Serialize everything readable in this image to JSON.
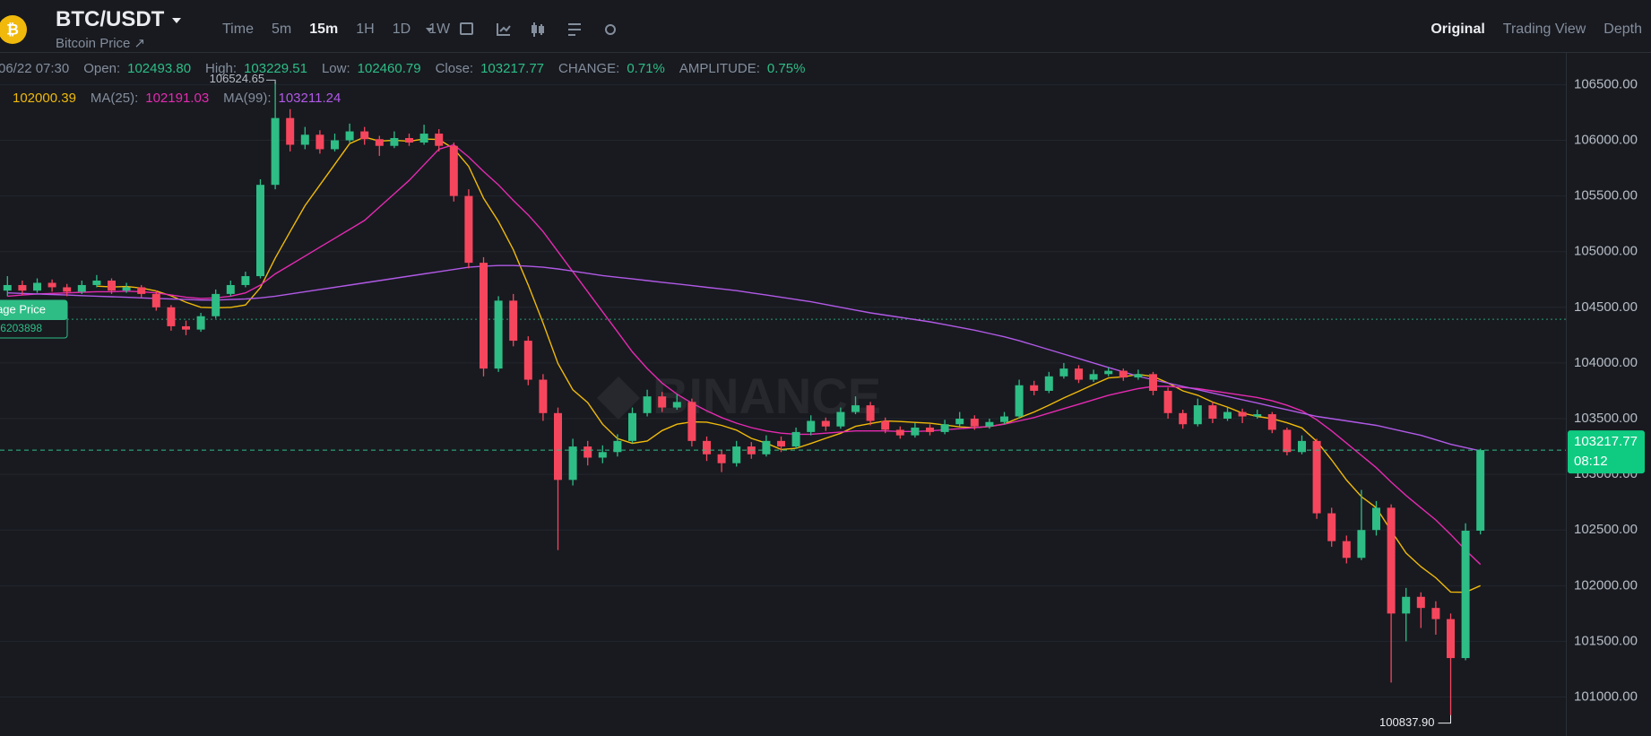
{
  "header": {
    "symbol": "BTC/USDT",
    "subtitle": "Bitcoin Price ↗",
    "intervals": [
      "Time",
      "5m",
      "15m",
      "1H",
      "1D",
      "1W"
    ],
    "active_interval": "15m",
    "views": [
      "Original",
      "Trading View",
      "Depth"
    ],
    "active_view": "Original"
  },
  "info": [
    {
      "value": "06/22 07:30"
    },
    {
      "label": "Open:",
      "value": "102493.80"
    },
    {
      "label": "High:",
      "value": "103229.51"
    },
    {
      "label": "Low:",
      "value": "102460.79"
    },
    {
      "label": "Close:",
      "value": "103217.77"
    },
    {
      "label": "CHANGE:",
      "value": "0.71%"
    },
    {
      "label": "AMPLITUDE:",
      "value": "0.75%"
    }
  ],
  "ma_info": [
    {
      "value": "102000.39"
    },
    {
      "label": "MA(25):",
      "value": "102191.03"
    },
    {
      "label": "MA(99):",
      "value": "103211.24"
    }
  ],
  "chart_data": {
    "type": "candlestick",
    "watermark": "BINANCE",
    "ylim": [
      100650,
      106785
    ],
    "yticks": [
      {
        "value": 101000,
        "label": "101000.00"
      },
      {
        "value": 101500,
        "label": "101500.00"
      },
      {
        "value": 102000,
        "label": "102000.00"
      },
      {
        "value": 102500,
        "label": "102500.00"
      },
      {
        "value": 103000,
        "label": "103000.00"
      },
      {
        "value": 103500,
        "label": "103500.00"
      },
      {
        "value": 104000,
        "label": "104000.00"
      },
      {
        "value": 104500,
        "label": "104500.00"
      },
      {
        "value": 105000,
        "label": "105000.00"
      },
      {
        "value": 105500,
        "label": "105500.00"
      },
      {
        "value": 106000,
        "label": "106000.00"
      },
      {
        "value": 106500,
        "label": "106500.00"
      }
    ],
    "grid": true,
    "up_color": "#2ebd85",
    "down_color": "#f6465d",
    "ohlc": [
      [
        104650,
        104780,
        104600,
        104700
      ],
      [
        104700,
        104740,
        104610,
        104650
      ],
      [
        104650,
        104760,
        104630,
        104720
      ],
      [
        104720,
        104750,
        104640,
        104680
      ],
      [
        104680,
        104710,
        104600,
        104640
      ],
      [
        104640,
        104740,
        104620,
        104700
      ],
      [
        104700,
        104790,
        104680,
        104740
      ],
      [
        104740,
        104760,
        104620,
        104650
      ],
      [
        104650,
        104720,
        104630,
        104680
      ],
      [
        104680,
        104700,
        104590,
        104620
      ],
      [
        104620,
        104650,
        104470,
        104500
      ],
      [
        104500,
        104520,
        104290,
        104330
      ],
      [
        104330,
        104380,
        104250,
        104300
      ],
      [
        104300,
        104450,
        104280,
        104420
      ],
      [
        104420,
        104660,
        104400,
        104620
      ],
      [
        104620,
        104740,
        104600,
        104700
      ],
      [
        104700,
        104820,
        104680,
        104780
      ],
      [
        104780,
        105650,
        104760,
        105600
      ],
      [
        105600,
        106524.65,
        105560,
        106200
      ],
      [
        106200,
        106280,
        105900,
        105960
      ],
      [
        105960,
        106120,
        105920,
        106050
      ],
      [
        106050,
        106090,
        105880,
        105920
      ],
      [
        105920,
        106060,
        105900,
        106000
      ],
      [
        106000,
        106150,
        105980,
        106080
      ],
      [
        106080,
        106120,
        105960,
        106010
      ],
      [
        106010,
        106040,
        105860,
        105950
      ],
      [
        105950,
        106080,
        105930,
        106020
      ],
      [
        106020,
        106060,
        105950,
        105980
      ],
      [
        105980,
        106140,
        105960,
        106060
      ],
      [
        106060,
        106100,
        105900,
        105950
      ],
      [
        105950,
        105980,
        105450,
        105500
      ],
      [
        105500,
        105560,
        104850,
        104900
      ],
      [
        104900,
        104950,
        103880,
        103950
      ],
      [
        103950,
        104600,
        103920,
        104560
      ],
      [
        104560,
        104620,
        104150,
        104200
      ],
      [
        104200,
        104240,
        103800,
        103850
      ],
      [
        103850,
        103900,
        103480,
        103550
      ],
      [
        103550,
        103600,
        102320,
        102950
      ],
      [
        102950,
        103320,
        102900,
        103250
      ],
      [
        103250,
        103300,
        103080,
        103150
      ],
      [
        103150,
        103260,
        103100,
        103200
      ],
      [
        103200,
        103360,
        103160,
        103300
      ],
      [
        103300,
        103600,
        103280,
        103550
      ],
      [
        103550,
        103760,
        103520,
        103700
      ],
      [
        103700,
        103740,
        103560,
        103600
      ],
      [
        103600,
        103720,
        103580,
        103650
      ],
      [
        103650,
        103680,
        103250,
        103300
      ],
      [
        103300,
        103340,
        103120,
        103180
      ],
      [
        103180,
        103220,
        103020,
        103100
      ],
      [
        103100,
        103300,
        103070,
        103250
      ],
      [
        103250,
        103290,
        103140,
        103180
      ],
      [
        103180,
        103350,
        103160,
        103300
      ],
      [
        103300,
        103340,
        103200,
        103250
      ],
      [
        103250,
        103420,
        103230,
        103380
      ],
      [
        103380,
        103530,
        103350,
        103480
      ],
      [
        103480,
        103510,
        103390,
        103430
      ],
      [
        103430,
        103600,
        103410,
        103560
      ],
      [
        103560,
        103700,
        103540,
        103620
      ],
      [
        103620,
        103650,
        103440,
        103480
      ],
      [
        103480,
        103510,
        103370,
        103400
      ],
      [
        103400,
        103430,
        103320,
        103350
      ],
      [
        103350,
        103460,
        103330,
        103420
      ],
      [
        103420,
        103450,
        103350,
        103380
      ],
      [
        103380,
        103490,
        103360,
        103450
      ],
      [
        103450,
        103560,
        103430,
        103500
      ],
      [
        103500,
        103530,
        103400,
        103430
      ],
      [
        103430,
        103500,
        103410,
        103470
      ],
      [
        103470,
        103560,
        103450,
        103520
      ],
      [
        103520,
        103850,
        103500,
        103800
      ],
      [
        103800,
        103840,
        103710,
        103750
      ],
      [
        103750,
        103920,
        103730,
        103880
      ],
      [
        103880,
        104000,
        103860,
        103950
      ],
      [
        103950,
        103980,
        103820,
        103850
      ],
      [
        103850,
        103940,
        103830,
        103900
      ],
      [
        103900,
        103960,
        103880,
        103930
      ],
      [
        103930,
        103950,
        103840,
        103870
      ],
      [
        103870,
        103940,
        103850,
        103900
      ],
      [
        103900,
        103920,
        103710,
        103750
      ],
      [
        103750,
        103780,
        103500,
        103550
      ],
      [
        103550,
        103580,
        103410,
        103450
      ],
      [
        103450,
        103680,
        103430,
        103620
      ],
      [
        103620,
        103650,
        103460,
        103500
      ],
      [
        103500,
        103600,
        103480,
        103560
      ],
      [
        103560,
        103590,
        103460,
        103520
      ],
      [
        103520,
        103580,
        103500,
        103540
      ],
      [
        103540,
        103560,
        103370,
        103400
      ],
      [
        103400,
        103420,
        103170,
        103200
      ],
      [
        103200,
        103350,
        103180,
        103300
      ],
      [
        103300,
        103320,
        102600,
        102650
      ],
      [
        102650,
        102700,
        102350,
        102400
      ],
      [
        102400,
        102450,
        102200,
        102250
      ],
      [
        102250,
        102860,
        102230,
        102500
      ],
      [
        102500,
        102760,
        102450,
        102700
      ],
      [
        102700,
        102730,
        101130,
        101750
      ],
      [
        101750,
        101980,
        101500,
        101900
      ],
      [
        101900,
        101940,
        101620,
        101800
      ],
      [
        101800,
        101860,
        101560,
        101700
      ],
      [
        101700,
        101750,
        100837.9,
        101350
      ],
      [
        101350,
        102560,
        101330,
        102493.8
      ],
      [
        102493.8,
        103229.51,
        102460.79,
        103217.77
      ]
    ],
    "series": [
      {
        "color": "#f0b90b",
        "values": [
          null,
          null,
          null,
          null,
          null,
          null,
          104690,
          104683,
          104687,
          104673,
          104647,
          104603,
          104546,
          104500,
          104496,
          104499,
          104521,
          104676,
          104943,
          105180,
          105413,
          105599,
          105784,
          105970,
          106029,
          105993,
          106001,
          105991,
          106011,
          106007,
          105924,
          105766,
          105480,
          105271,
          105017,
          104701,
          104359,
          103995,
          103759,
          103644,
          103450,
          103321,
          103279,
          103300,
          103393,
          103450,
          103471,
          103469,
          103440,
          103397,
          103323,
          103280,
          103223,
          103234,
          103277,
          103324,
          103369,
          103431,
          103457,
          103479,
          103474,
          103466,
          103459,
          103443,
          103426,
          103419,
          103429,
          103453,
          103507,
          103560,
          103621,
          103686,
          103746,
          103807,
          103866,
          103876,
          103897,
          103879,
          103821,
          103750,
          103710,
          103649,
          103604,
          103550,
          103520,
          103499,
          103463,
          103417,
          103296,
          103130,
          102949,
          102800,
          102700,
          102493,
          102293,
          102171,
          102071,
          101943,
          101941,
          102000.39
        ]
      },
      {
        "color": "#e52ab0",
        "values": [
          104600,
          104610,
          104620,
          104625,
          104630,
          104635,
          104640,
          104640,
          104645,
          104640,
          104630,
          104610,
          104590,
          104580,
          104585,
          104600,
          104630,
          104700,
          104800,
          104880,
          104960,
          105040,
          105120,
          105200,
          105280,
          105400,
          105520,
          105640,
          105780,
          105920,
          105960,
          105850,
          105720,
          105600,
          105460,
          105330,
          105180,
          105000,
          104820,
          104640,
          104460,
          104280,
          104100,
          103950,
          103820,
          103720,
          103640,
          103570,
          103510,
          103460,
          103420,
          103390,
          103370,
          103360,
          103360,
          103370,
          103380,
          103390,
          103390,
          103390,
          103385,
          103385,
          103390,
          103400,
          103410,
          103420,
          103430,
          103450,
          103480,
          103510,
          103550,
          103590,
          103630,
          103670,
          103710,
          103740,
          103770,
          103790,
          103790,
          103780,
          103770,
          103750,
          103730,
          103710,
          103690,
          103660,
          103620,
          103570,
          103490,
          103390,
          103280,
          103170,
          103060,
          102930,
          102810,
          102700,
          102590,
          102460,
          102320,
          102191.03
        ]
      },
      {
        "color": "#b259e6",
        "values": [
          104630,
          104625,
          104620,
          104615,
          104610,
          104605,
          104600,
          104595,
          104590,
          104585,
          104580,
          104575,
          104570,
          104565,
          104565,
          104570,
          104575,
          104585,
          104600,
          104620,
          104640,
          104660,
          104680,
          104700,
          104720,
          104740,
          104760,
          104780,
          104800,
          104820,
          104840,
          104860,
          104870,
          104875,
          104875,
          104870,
          104860,
          104845,
          104825,
          104805,
          104785,
          104770,
          104755,
          104740,
          104725,
          104710,
          104695,
          104680,
          104665,
          104650,
          104630,
          104610,
          104590,
          104570,
          104550,
          104525,
          104500,
          104475,
          104450,
          104430,
          104410,
          104390,
          104370,
          104345,
          104320,
          104295,
          104265,
          104235,
          104200,
          104160,
          104120,
          104080,
          104040,
          104000,
          103960,
          103920,
          103880,
          103850,
          103820,
          103790,
          103760,
          103730,
          103700,
          103670,
          103640,
          103610,
          103580,
          103550,
          103520,
          103500,
          103480,
          103460,
          103440,
          103410,
          103380,
          103350,
          103310,
          103270,
          103240,
          103211.24
        ]
      }
    ],
    "high_marker": {
      "value": 106524.65,
      "label": "106524.65"
    },
    "low_marker": {
      "value": 100837.9,
      "label": "100837.90"
    },
    "avg_price_line": 104393,
    "avg_price_label": "age Price",
    "avg_price_value": "6203898",
    "last_price_label": "103217.77",
    "countdown": "08:12"
  }
}
